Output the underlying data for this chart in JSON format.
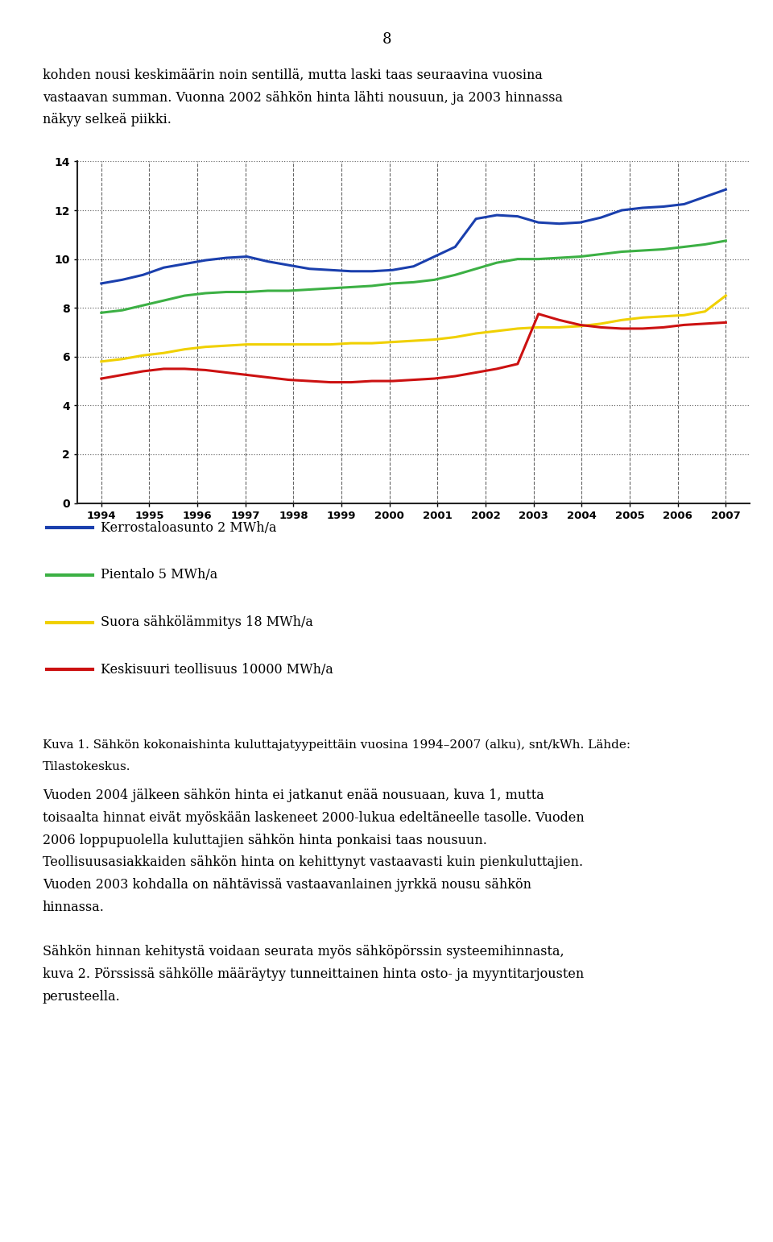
{
  "page_number": "8",
  "text_top": [
    "kohden nousi keskimäärin noin sentillä, mutta laski taas seuraavina vuosina",
    "vastaavan summan. Vuonna 2002 sähkön hinta lähti nousuun, ja 2003 hinnassa",
    "näkyy selkeä piikki."
  ],
  "blue": [
    9.0,
    9.15,
    9.35,
    9.65,
    9.8,
    9.95,
    10.05,
    10.1,
    9.9,
    9.75,
    9.6,
    9.55,
    9.5,
    9.5,
    9.55,
    9.7,
    10.1,
    10.5,
    11.65,
    11.8,
    11.75,
    11.5,
    11.45,
    11.5,
    11.7,
    12.0,
    12.1,
    12.15,
    12.25,
    12.55,
    12.85
  ],
  "green": [
    7.8,
    7.9,
    8.1,
    8.3,
    8.5,
    8.6,
    8.65,
    8.65,
    8.7,
    8.7,
    8.75,
    8.8,
    8.85,
    8.9,
    9.0,
    9.05,
    9.15,
    9.35,
    9.6,
    9.85,
    10.0,
    10.0,
    10.05,
    10.1,
    10.2,
    10.3,
    10.35,
    10.4,
    10.5,
    10.6,
    10.75
  ],
  "yellow": [
    5.8,
    5.9,
    6.05,
    6.15,
    6.3,
    6.4,
    6.45,
    6.5,
    6.5,
    6.5,
    6.5,
    6.5,
    6.55,
    6.55,
    6.6,
    6.65,
    6.7,
    6.8,
    6.95,
    7.05,
    7.15,
    7.2,
    7.2,
    7.25,
    7.35,
    7.5,
    7.6,
    7.65,
    7.7,
    7.85,
    8.5
  ],
  "red": [
    5.1,
    5.25,
    5.4,
    5.5,
    5.5,
    5.45,
    5.35,
    5.25,
    5.15,
    5.05,
    5.0,
    4.95,
    4.95,
    5.0,
    5.0,
    5.05,
    5.1,
    5.2,
    5.35,
    5.5,
    5.7,
    7.75,
    7.5,
    7.3,
    7.2,
    7.15,
    7.15,
    7.2,
    7.3,
    7.35,
    7.4
  ],
  "blue_color": "#1a3fad",
  "green_color": "#3cb044",
  "yellow_color": "#f0d000",
  "red_color": "#cc1111",
  "legend_labels": [
    "Kerrostaloasunto 2 MWh/a",
    "Pientalo 5 MWh/a",
    "Suora sähkölämmitys 18 MWh/a",
    "Keskisuuri teollisuus 10000 MWh/a"
  ],
  "ylim": [
    0,
    14
  ],
  "yticks": [
    0,
    2,
    4,
    6,
    8,
    10,
    12,
    14
  ],
  "xticks": [
    1994,
    1995,
    1996,
    1997,
    1998,
    1999,
    2000,
    2001,
    2002,
    2003,
    2004,
    2005,
    2006,
    2007
  ],
  "caption_line1": "Kuva 1. Sähkön kokonaishinta kuluttajatyypeittäin vuosina 1994–2007 (alku), snt/kWh. Lähde:",
  "caption_line2": "Tilastokeskus.",
  "text_after": [
    "Vuoden 2004 jälkeen sähkön hinta ei jatkanut enää nousuaan, kuva 1, mutta",
    "toisaalta hinnat eivät myöskään laskeneet 2000-lukua edeltäneelle tasolle. Vuoden",
    "2006 loppupuolella kuluttajien sähkön hinta ponkaisi taas nousuun.",
    "Teollisuusasiakkaiden sähkön hinta on kehittynyt vastaavasti kuin pienkuluttajien.",
    "Vuoden 2003 kohdalla on nähtävissä vastaavanlainen jyrkkä nousu sähkön",
    "hinnassa.",
    "",
    "Sähkön hinnan kehitystä voidaan seurata myös sähköpörssin systeemihinnasta,",
    "kuva 2. Pörssissä sähkölle määräytyy tunneittainen hinta osto- ja myyntitarjousten",
    "perusteella."
  ],
  "bg_color": "#ffffff",
  "line_width": 2.2
}
